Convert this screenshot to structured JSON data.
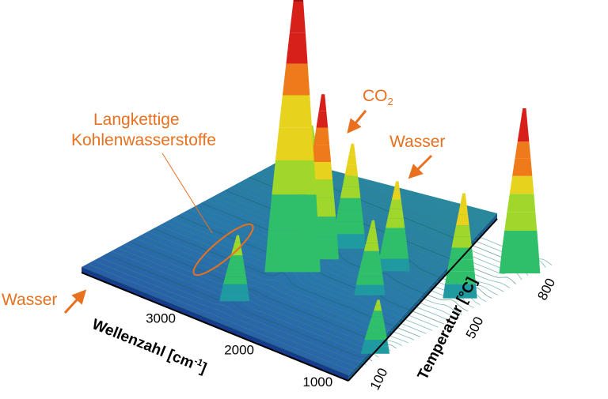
{
  "chart_data": {
    "type": "surface-3d",
    "x_axis": {
      "label": "Wellenzahl [cm-1]",
      "label_main": "Wellenzahl [cm",
      "label_sup": "-1",
      "label_end": "]",
      "ticks": [
        3000,
        2000,
        1000
      ],
      "range": [
        4000,
        600
      ]
    },
    "y_axis": {
      "label": "Temperatur [°C]",
      "ticks": [
        100,
        500,
        800
      ],
      "range": [
        50,
        900
      ]
    },
    "peaks": [
      {
        "wavenumber": 2350,
        "temperature": 420,
        "height": 1.0
      },
      {
        "wavenumber": 2350,
        "temperature": 520,
        "height": 0.55
      },
      {
        "wavenumber": 2280,
        "temperature": 620,
        "height": 0.35
      },
      {
        "wavenumber": 2400,
        "temperature": 180,
        "height": 0.22
      },
      {
        "wavenumber": 3350,
        "temperature": 800,
        "height": 0.22
      },
      {
        "wavenumber": 1650,
        "temperature": 600,
        "height": 0.3
      },
      {
        "wavenumber": 1500,
        "temperature": 450,
        "height": 0.25
      },
      {
        "wavenumber": 700,
        "temperature": 820,
        "height": 0.55
      },
      {
        "wavenumber": 800,
        "temperature": 600,
        "height": 0.35
      },
      {
        "wavenumber": 670,
        "temperature": 200,
        "height": 0.18
      }
    ],
    "annotations": [
      {
        "text": "CO",
        "sub": "2"
      },
      {
        "text": "Wasser"
      },
      {
        "text": "Langkettige"
      },
      {
        "text": "Kohlenwasserstoffe"
      },
      {
        "text": "Wasser"
      }
    ],
    "colormap": [
      "#1f3c9e",
      "#1f6fa8",
      "#1e9aa0",
      "#2fbf6a",
      "#9fd82a",
      "#e7d21e",
      "#ef7a1a",
      "#d8201a",
      "#a8100e"
    ],
    "accent_color": "#e8701f"
  }
}
